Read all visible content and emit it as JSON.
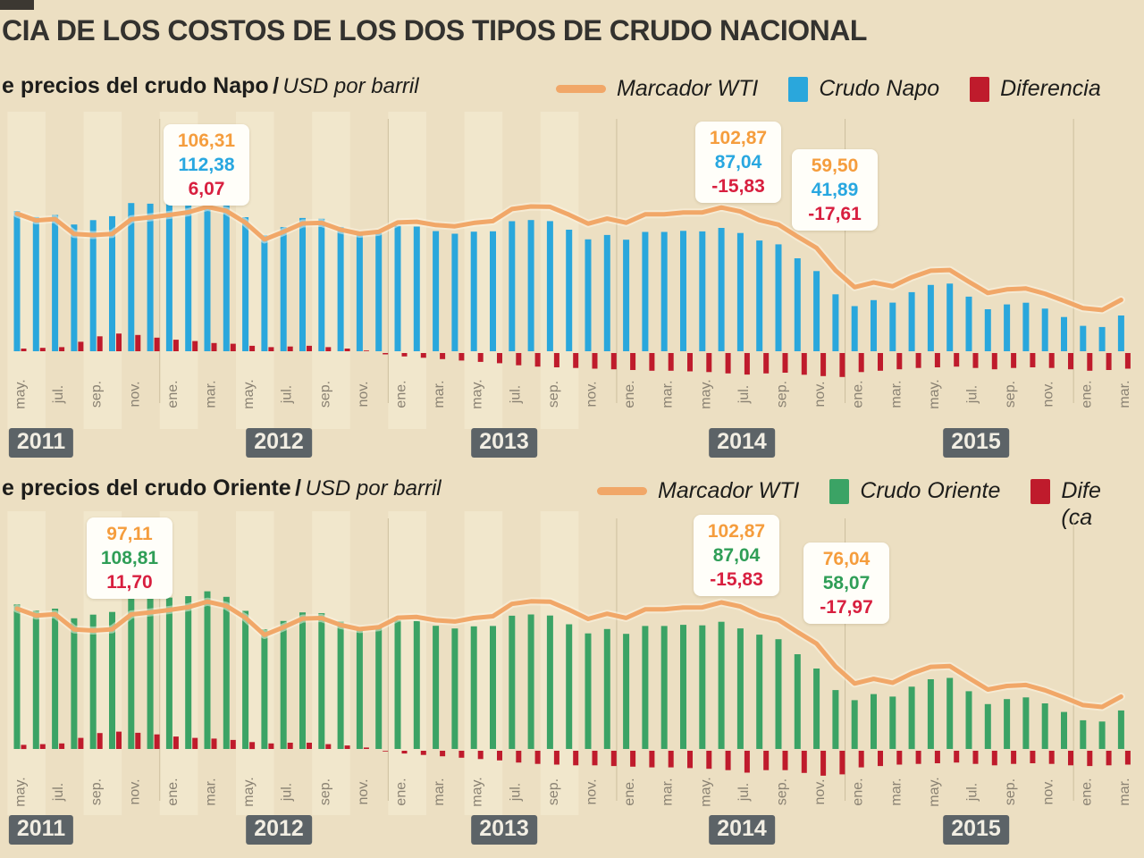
{
  "title": "CIA DE LOS COSTOS DE LOS DOS TIPOS DE CRUDO NACIONAL",
  "years": [
    "2011",
    "2012",
    "2013",
    "2014",
    "2015"
  ],
  "x_tick_labels": [
    "may.",
    "jul.",
    "sep.",
    "nov.",
    "ene.",
    "mar.",
    "may.",
    "jul.",
    "sep.",
    "nov.",
    "ene.",
    "mar.",
    "may.",
    "jul.",
    "sep.",
    "nov.",
    "ene.",
    "mar.",
    "may.",
    "jul.",
    "sep.",
    "nov.",
    "ene.",
    "mar.",
    "may.",
    "jul.",
    "sep.",
    "nov.",
    "ene.",
    "mar."
  ],
  "colors": {
    "background": "#ecdfc2",
    "stripe": "#f6edd6",
    "year_line": "#cdbf9e",
    "tick_text": "#8a8273",
    "wti_line": "#f1a768",
    "napo_bar": "#2aa7dc",
    "oriente_bar": "#3ba365",
    "diff_bar": "#bf1b2c",
    "year_box": "#5c6367",
    "annotation_wti": "#f59d3d",
    "annotation_napo": "#28a7e0",
    "annotation_oriente": "#2f9e57",
    "annotation_diff": "#d81f3f"
  },
  "charts": [
    {
      "subtitle": "e precios del crudo Napo",
      "separator": "/",
      "unit": "USD por barril",
      "legend": [
        {
          "label": "Marcador WTI",
          "swatch": "line",
          "color": "#f1a768"
        },
        {
          "label": "Crudo Napo",
          "swatch": "square",
          "color": "#2aa7dc"
        },
        {
          "label": "Diferencia",
          "swatch": "square",
          "color": "#bf1b2c"
        }
      ]
    },
    {
      "subtitle": "e precios del crudo Oriente",
      "separator": "/",
      "unit": "USD por barril",
      "legend": [
        {
          "label": "Marcador WTI",
          "swatch": "line",
          "color": "#f1a768"
        },
        {
          "label": "Crudo Oriente",
          "swatch": "square",
          "color": "#3ba365"
        },
        {
          "label": "Dife",
          "label_line2": "(ca",
          "swatch": "square",
          "color": "#bf1b2c"
        }
      ]
    }
  ],
  "chart_data": [
    {
      "type": "bar",
      "title": "e precios del crudo Napo",
      "ylabel": "USD por barril",
      "ylim": [
        -20,
        115
      ],
      "grid": "vertical-year-separators",
      "legend_position": "top-right",
      "x": [
        "2011-05",
        "2011-06",
        "2011-07",
        "2011-08",
        "2011-09",
        "2011-10",
        "2011-11",
        "2011-12",
        "2012-01",
        "2012-02",
        "2012-03",
        "2012-04",
        "2012-05",
        "2012-06",
        "2012-07",
        "2012-08",
        "2012-09",
        "2012-10",
        "2012-11",
        "2012-12",
        "2013-01",
        "2013-02",
        "2013-03",
        "2013-04",
        "2013-05",
        "2013-06",
        "2013-07",
        "2013-08",
        "2013-09",
        "2013-10",
        "2013-11",
        "2013-12",
        "2014-01",
        "2014-02",
        "2014-03",
        "2014-04",
        "2014-05",
        "2014-06",
        "2014-07",
        "2014-08",
        "2014-09",
        "2014-10",
        "2014-11",
        "2014-12",
        "2015-01",
        "2015-02",
        "2015-03",
        "2015-04",
        "2015-05",
        "2015-06",
        "2015-07",
        "2015-08",
        "2015-09",
        "2015-10",
        "2015-11",
        "2015-12",
        "2016-01",
        "2016-02",
        "2016-03"
      ],
      "series": [
        {
          "name": "Marcador WTI",
          "style": "line",
          "color": "#f1a768",
          "values": [
            101.3,
            96.3,
            97.3,
            86.3,
            85.5,
            86.4,
            97.11,
            98.6,
            100.3,
            102.3,
            106.31,
            103.3,
            94.7,
            82.3,
            87.9,
            94.1,
            94.5,
            89.5,
            86.5,
            87.9,
            94.8,
            95.3,
            92.9,
            92.0,
            94.5,
            95.8,
            104.7,
            106.6,
            106.3,
            100.5,
            93.9,
            97.6,
            94.6,
            100.8,
            100.8,
            102.1,
            102.2,
            105.8,
            102.87,
            96.5,
            93.2,
            84.4,
            76.04,
            59.5,
            47.2,
            50.6,
            47.8,
            54.5,
            59.3,
            59.8,
            51.2,
            42.9,
            45.5,
            46.2,
            42.4,
            37.2,
            31.7,
            30.3,
            37.8
          ]
        },
        {
          "name": "Crudo Napo",
          "style": "bar",
          "color": "#2aa7dc",
          "values": [
            103.3,
            98.8,
            100.3,
            93.3,
            96.5,
            99.4,
            109.11,
            108.6,
            108.8,
            109.8,
            112.38,
            108.8,
            98.7,
            85.3,
            91.4,
            98.1,
            97.5,
            91.5,
            87.0,
            86.9,
            92.3,
            91.8,
            88.4,
            86.5,
            88.0,
            88.3,
            95.7,
            96.6,
            95.8,
            89.5,
            82.4,
            85.6,
            82.1,
            87.8,
            87.8,
            88.6,
            88.2,
            90.8,
            87.04,
            81.5,
            78.7,
            68.4,
            59.04,
            41.89,
            33.2,
            37.6,
            35.8,
            43.5,
            48.8,
            49.8,
            40.2,
            30.9,
            34.5,
            35.7,
            31.4,
            25.2,
            18.7,
            17.8,
            26.3
          ]
        },
        {
          "name": "Diferencia",
          "style": "bar",
          "color": "#bf1b2c",
          "values": [
            2.0,
            2.5,
            3.0,
            7.0,
            11.0,
            13.0,
            12.0,
            10.0,
            8.5,
            7.5,
            6.07,
            5.5,
            4.0,
            3.0,
            3.5,
            4.0,
            3.0,
            2.0,
            0.5,
            -1.0,
            -2.5,
            -3.5,
            -4.5,
            -5.5,
            -6.5,
            -7.5,
            -9.0,
            -10.0,
            -10.5,
            -11.0,
            -11.5,
            -12.0,
            -12.5,
            -13.0,
            -13.0,
            -13.5,
            -14.0,
            -15.0,
            -15.83,
            -15.0,
            -14.5,
            -16.0,
            -17.0,
            -17.61,
            -14.0,
            -13.0,
            -12.0,
            -11.0,
            -10.5,
            -10.0,
            -11.0,
            -12.0,
            -11.0,
            -10.5,
            -11.0,
            -12.0,
            -13.0,
            -12.5,
            -11.5
          ]
        }
      ],
      "annotations": [
        {
          "x": "2012-03",
          "lines": [
            {
              "text": "106,31",
              "series": "Marcador WTI"
            },
            {
              "text": "112,38",
              "series": "Crudo Napo"
            },
            {
              "text": "6,07",
              "series": "Diferencia"
            }
          ]
        },
        {
          "x": "2014-07",
          "lines": [
            {
              "text": "102,87",
              "series": "Marcador WTI"
            },
            {
              "text": "87,04",
              "series": "Crudo Napo"
            },
            {
              "text": "-15,83",
              "series": "Diferencia"
            }
          ]
        },
        {
          "x": "2014-12",
          "lines": [
            {
              "text": "59,50",
              "series": "Marcador WTI"
            },
            {
              "text": "41,89",
              "series": "Crudo Napo"
            },
            {
              "text": "-17,61",
              "series": "Diferencia"
            }
          ]
        }
      ]
    },
    {
      "type": "bar",
      "title": "e precios del crudo Oriente",
      "ylabel": "USD por barril",
      "ylim": [
        -20,
        115
      ],
      "grid": "vertical-year-separators",
      "legend_position": "top-right",
      "x": [
        "2011-05",
        "2011-06",
        "2011-07",
        "2011-08",
        "2011-09",
        "2011-10",
        "2011-11",
        "2011-12",
        "2012-01",
        "2012-02",
        "2012-03",
        "2012-04",
        "2012-05",
        "2012-06",
        "2012-07",
        "2012-08",
        "2012-09",
        "2012-10",
        "2012-11",
        "2012-12",
        "2013-01",
        "2013-02",
        "2013-03",
        "2013-04",
        "2013-05",
        "2013-06",
        "2013-07",
        "2013-08",
        "2013-09",
        "2013-10",
        "2013-11",
        "2013-12",
        "2014-01",
        "2014-02",
        "2014-03",
        "2014-04",
        "2014-05",
        "2014-06",
        "2014-07",
        "2014-08",
        "2014-09",
        "2014-10",
        "2014-11",
        "2014-12",
        "2015-01",
        "2015-02",
        "2015-03",
        "2015-04",
        "2015-05",
        "2015-06",
        "2015-07",
        "2015-08",
        "2015-09",
        "2015-10",
        "2015-11",
        "2015-12",
        "2016-01",
        "2016-02",
        "2016-03"
      ],
      "series": [
        {
          "name": "Marcador WTI",
          "style": "line",
          "color": "#f1a768",
          "values": [
            101.3,
            96.3,
            97.3,
            86.3,
            85.5,
            86.4,
            97.11,
            98.6,
            100.3,
            102.3,
            106.31,
            103.3,
            94.7,
            82.3,
            87.9,
            94.1,
            94.5,
            89.5,
            86.5,
            87.9,
            94.8,
            95.3,
            92.9,
            92.0,
            94.5,
            95.8,
            104.7,
            106.6,
            106.3,
            100.5,
            93.9,
            97.6,
            94.6,
            100.8,
            100.8,
            102.1,
            102.2,
            105.8,
            102.87,
            96.5,
            93.2,
            84.4,
            76.04,
            59.5,
            47.2,
            50.6,
            47.8,
            54.5,
            59.3,
            59.8,
            51.2,
            42.9,
            45.5,
            46.2,
            42.4,
            37.2,
            31.7,
            30.3,
            37.8
          ]
        },
        {
          "name": "Crudo Oriente",
          "style": "bar",
          "color": "#3ba365",
          "values": [
            104.3,
            99.8,
            101.3,
            94.3,
            97.0,
            98.9,
            108.81,
            109.1,
            109.3,
            110.3,
            113.81,
            109.8,
            99.7,
            86.3,
            92.4,
            98.6,
            98.0,
            92.0,
            87.5,
            87.4,
            92.8,
            92.3,
            88.9,
            87.0,
            88.5,
            88.8,
            96.2,
            97.1,
            96.3,
            90.0,
            83.4,
            86.6,
            83.1,
            88.8,
            88.8,
            89.6,
            89.2,
            91.8,
            87.04,
            82.5,
            79.2,
            68.4,
            58.07,
            42.5,
            35.2,
            39.6,
            37.8,
            45.0,
            50.3,
            51.3,
            41.7,
            32.4,
            36.0,
            37.2,
            32.9,
            26.7,
            20.7,
            19.8,
            27.8
          ]
        },
        {
          "name": "Diferencia",
          "style": "bar",
          "color": "#bf1b2c",
          "values": [
            3.0,
            3.5,
            4.0,
            8.0,
            11.5,
            12.5,
            11.7,
            10.5,
            9.0,
            8.0,
            7.5,
            6.5,
            5.0,
            4.0,
            4.5,
            4.5,
            3.5,
            2.5,
            1.0,
            -0.5,
            -2.0,
            -3.0,
            -4.0,
            -5.0,
            -6.0,
            -7.0,
            -8.5,
            -9.5,
            -10.0,
            -10.5,
            -10.5,
            -11.0,
            -11.5,
            -12.0,
            -12.0,
            -12.5,
            -13.0,
            -14.0,
            -15.83,
            -14.0,
            -14.0,
            -16.0,
            -17.97,
            -17.0,
            -12.0,
            -11.0,
            -10.0,
            -9.5,
            -9.0,
            -8.5,
            -9.5,
            -10.5,
            -9.5,
            -9.0,
            -9.5,
            -10.5,
            -11.0,
            -10.5,
            -10.0
          ]
        }
      ],
      "annotations": [
        {
          "x": "2011-11",
          "lines": [
            {
              "text": "97,11",
              "series": "Marcador WTI"
            },
            {
              "text": "108,81",
              "series": "Crudo Oriente"
            },
            {
              "text": "11,70",
              "series": "Diferencia"
            }
          ]
        },
        {
          "x": "2014-07",
          "lines": [
            {
              "text": "102,87",
              "series": "Marcador WTI"
            },
            {
              "text": "87,04",
              "series": "Crudo Oriente"
            },
            {
              "text": "-15,83",
              "series": "Diferencia"
            }
          ]
        },
        {
          "x": "2014-11",
          "lines": [
            {
              "text": "76,04",
              "series": "Marcador WTI"
            },
            {
              "text": "58,07",
              "series": "Crudo Oriente"
            },
            {
              "text": "-17,97",
              "series": "Diferencia"
            }
          ]
        }
      ]
    }
  ]
}
